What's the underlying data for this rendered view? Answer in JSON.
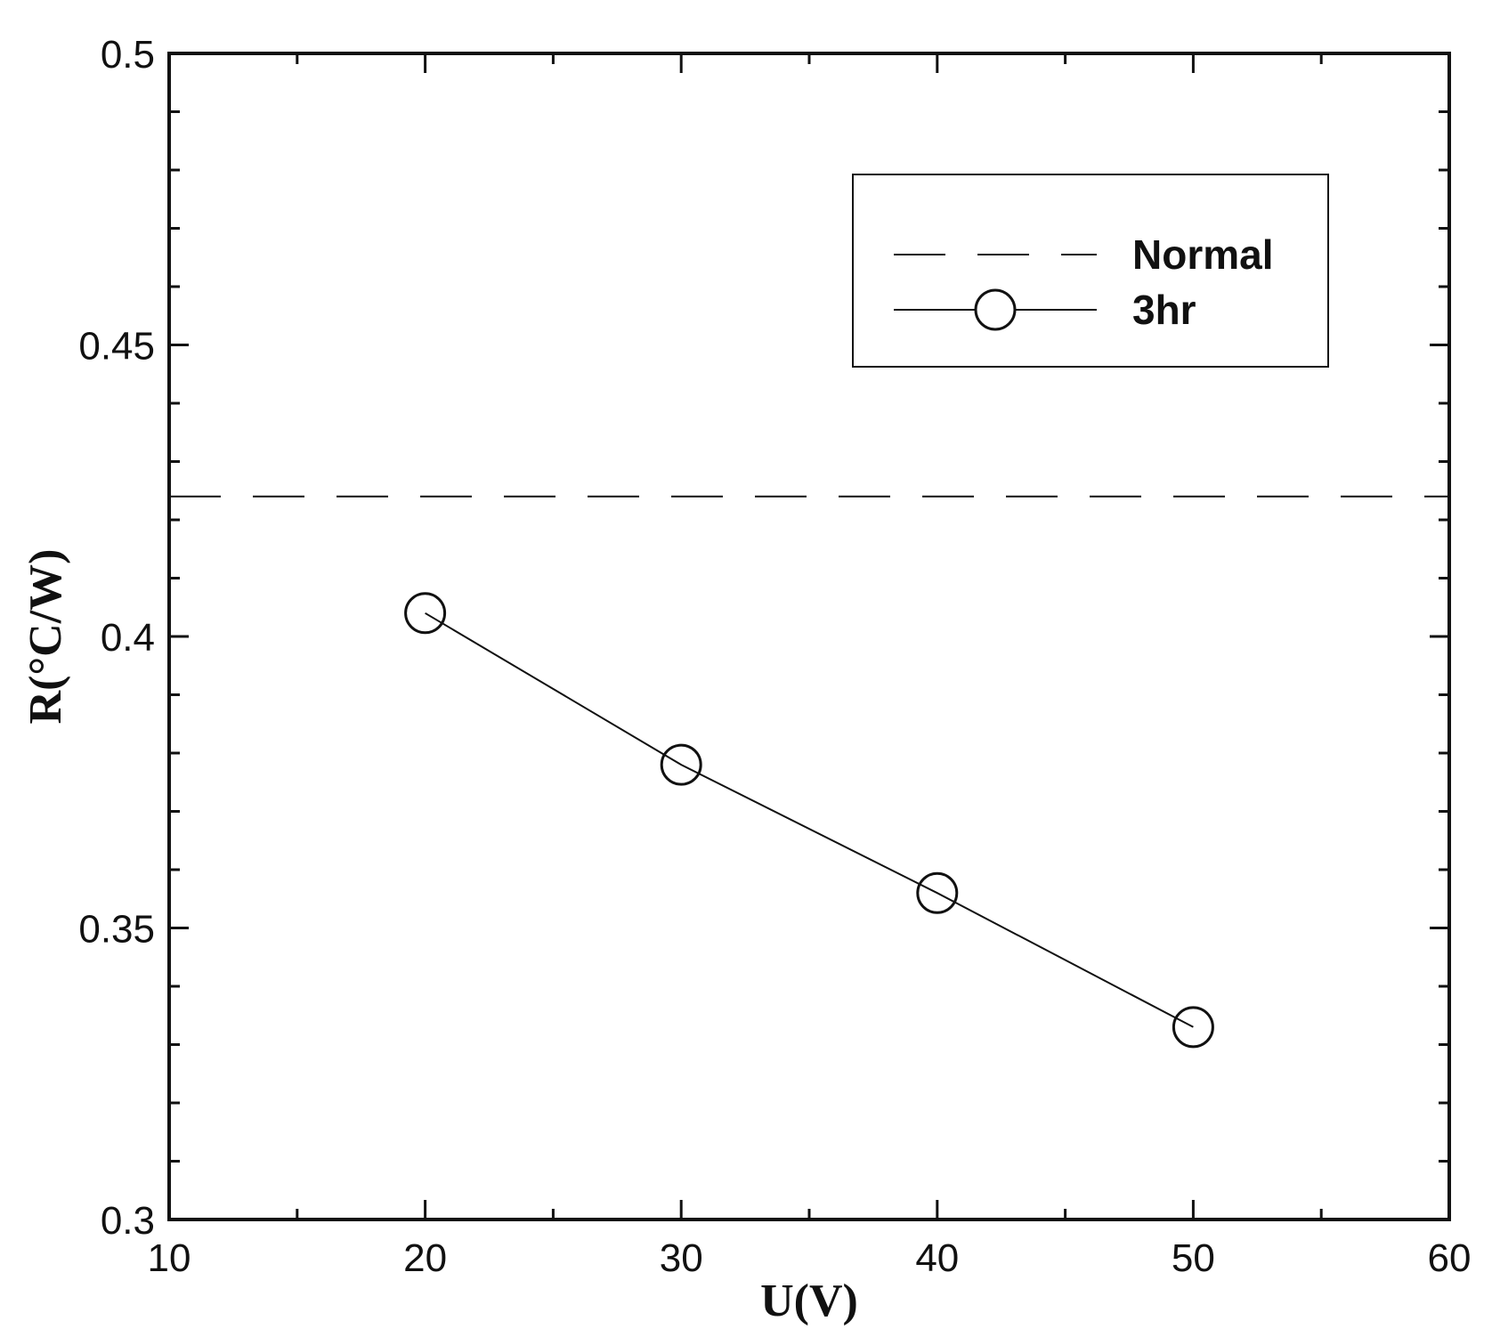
{
  "chart_data": {
    "type": "line",
    "xlabel": "U(V)",
    "ylabel": "R(°C/W)",
    "xlim": [
      10,
      60
    ],
    "ylim": [
      0.3,
      0.5
    ],
    "x_ticks": [
      "10",
      "20",
      "30",
      "40",
      "50",
      "60"
    ],
    "y_ticks": [
      "0.3",
      "0.35",
      "0.4",
      "0.45",
      "0.5"
    ],
    "grid": false,
    "legend_position": "top-right",
    "series": [
      {
        "name": "Normal",
        "style": "dashed",
        "marker": "none",
        "color": "#111111",
        "x": [
          10,
          60
        ],
        "y": [
          0.424,
          0.424
        ]
      },
      {
        "name": "3hr",
        "style": "solid",
        "marker": "open-circle",
        "color": "#111111",
        "x": [
          20,
          30,
          40,
          50
        ],
        "y": [
          0.404,
          0.378,
          0.356,
          0.333
        ]
      }
    ]
  }
}
